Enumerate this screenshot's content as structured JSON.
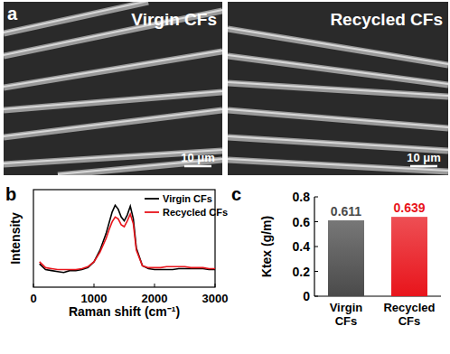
{
  "images": {
    "title": "a",
    "panels": [
      {
        "label": "Virgin CFs",
        "scale_bar": "10 μm"
      },
      {
        "label": "Recycled CFs",
        "scale_bar": "10 μm"
      }
    ]
  },
  "chart_data": [
    {
      "type": "line",
      "title": "b",
      "x_label": "Raman shift (cm⁻¹)",
      "y_label": "Intensity",
      "x": [
        100,
        200,
        300,
        400,
        500,
        600,
        700,
        800,
        900,
        1000,
        1100,
        1200,
        1250,
        1300,
        1350,
        1400,
        1450,
        1500,
        1550,
        1600,
        1650,
        1700,
        1800,
        1900,
        2000,
        2100,
        2200,
        2300,
        2400,
        2500,
        2600,
        2700,
        2800,
        2900,
        3000
      ],
      "series": [
        {
          "name": "Virgin CFs",
          "color": "#000000",
          "values": [
            0.24,
            0.18,
            0.17,
            0.16,
            0.15,
            0.17,
            0.17,
            0.18,
            0.2,
            0.26,
            0.38,
            0.55,
            0.66,
            0.77,
            0.84,
            0.8,
            0.72,
            0.68,
            0.74,
            0.83,
            0.7,
            0.4,
            0.22,
            0.19,
            0.18,
            0.18,
            0.18,
            0.18,
            0.19,
            0.19,
            0.19,
            0.19,
            0.19,
            0.18,
            0.18
          ]
        },
        {
          "name": "Recycled CFs",
          "color": "#e8141b",
          "values": [
            0.26,
            0.2,
            0.19,
            0.18,
            0.18,
            0.18,
            0.18,
            0.19,
            0.21,
            0.26,
            0.36,
            0.5,
            0.59,
            0.67,
            0.72,
            0.7,
            0.64,
            0.62,
            0.68,
            0.75,
            0.65,
            0.38,
            0.22,
            0.2,
            0.2,
            0.2,
            0.21,
            0.21,
            0.21,
            0.21,
            0.2,
            0.2,
            0.2,
            0.19,
            0.19
          ]
        }
      ],
      "xlim": [
        0,
        3000
      ],
      "xticks": [
        0,
        1000,
        2000,
        3000
      ],
      "ylim": [
        0,
        1
      ],
      "tick_labels": "x",
      "legend": "upper right"
    },
    {
      "type": "bar",
      "title": "c",
      "y_label": "Ktex (g/m)",
      "categories": [
        "Virgin CFs",
        "Recycled CFs"
      ],
      "values": [
        0.611,
        0.639
      ],
      "colors": [
        "#4a4a4a",
        "#e8141b"
      ],
      "ylim": [
        0,
        0.8
      ],
      "yticks": [
        0,
        0.2,
        0.4,
        0.6,
        0.8
      ],
      "data_labels": true
    }
  ]
}
